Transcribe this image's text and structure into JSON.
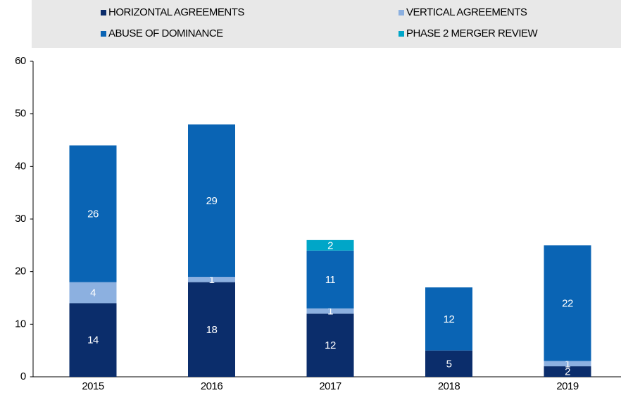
{
  "chart_data": {
    "type": "stacked_bar",
    "categories": [
      "2015",
      "2016",
      "2017",
      "2018",
      "2019"
    ],
    "series": [
      {
        "name": "HORIZONTAL AGREEMENTS",
        "color": "#0b2d6b",
        "values": [
          14,
          18,
          12,
          5,
          2
        ]
      },
      {
        "name": "VERTICAL AGREEMENTS",
        "color": "#8cb0e0",
        "values": [
          4,
          1,
          1,
          null,
          1
        ]
      },
      {
        "name": "ABUSE OF DOMINANCE",
        "color": "#0a64b4",
        "values": [
          26,
          29,
          11,
          12,
          22
        ]
      },
      {
        "name": "PHASE 2 MERGER REVIEW",
        "color": "#00a6c8",
        "values": [
          null,
          null,
          2,
          null,
          null
        ]
      }
    ],
    "ylim": [
      0,
      60
    ],
    "yticks": [
      0,
      10,
      20,
      30,
      40,
      50,
      60
    ],
    "grid": false,
    "legend": "top"
  }
}
